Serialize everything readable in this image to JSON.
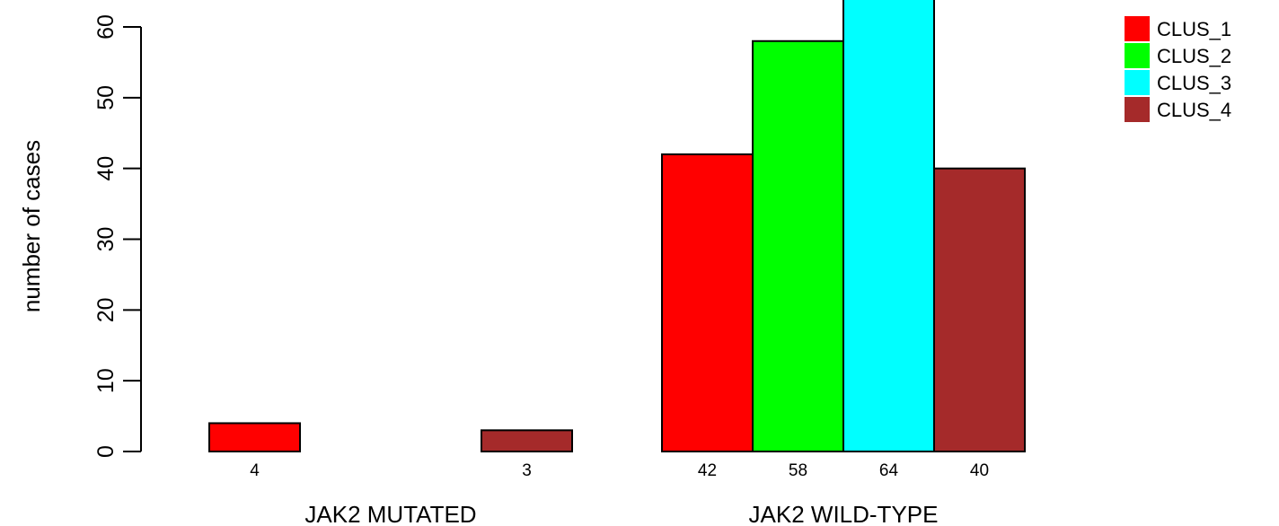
{
  "chart_data": {
    "type": "bar",
    "ylabel": "number of cases",
    "ylim": [
      0,
      60
    ],
    "yticks": [
      0,
      10,
      20,
      30,
      40,
      50,
      60
    ],
    "legend_position": "top-right",
    "series": [
      {
        "name": "CLUS_1",
        "color": "#ff0000"
      },
      {
        "name": "CLUS_2",
        "color": "#00ff00"
      },
      {
        "name": "CLUS_3",
        "color": "#00ffff"
      },
      {
        "name": "CLUS_4",
        "color": "#a52a2a"
      }
    ],
    "groups": [
      {
        "label": "JAK2 MUTATED",
        "values": [
          4,
          0,
          0,
          3
        ]
      },
      {
        "label": "JAK2 WILD-TYPE",
        "values": [
          42,
          58,
          64,
          40
        ]
      }
    ]
  }
}
